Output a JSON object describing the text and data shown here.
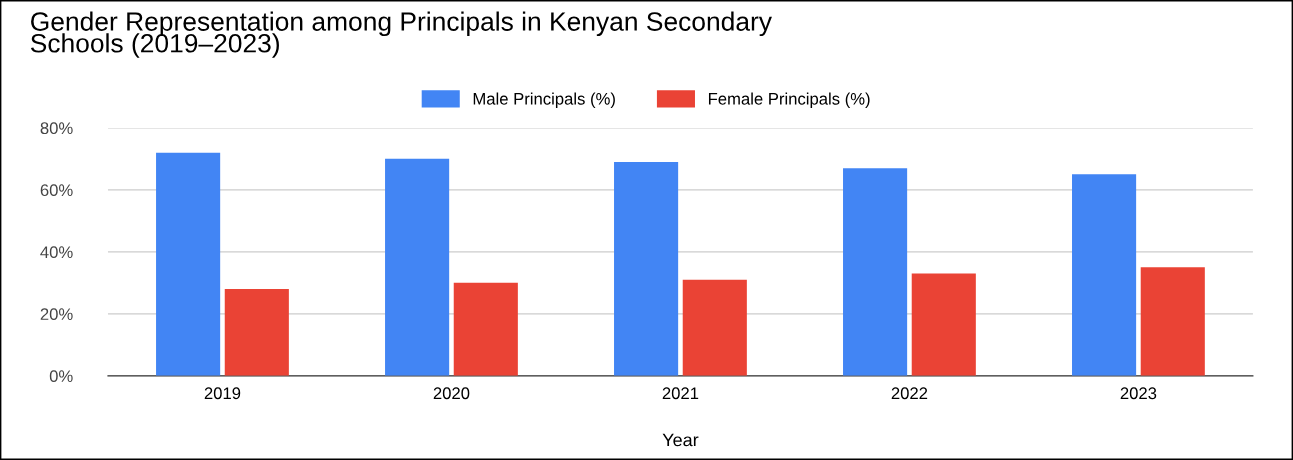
{
  "chart_data": {
    "type": "bar",
    "title": "Gender Representation among Principals in Kenyan Secondary\nSchools (2019–2023)",
    "xlabel": "Year",
    "categories": [
      "2019",
      "2020",
      "2021",
      "2022",
      "2023"
    ],
    "series": [
      {
        "name": "Male Principals (%)",
        "color": "#4285f4",
        "values": [
          72,
          70,
          69,
          67,
          65
        ]
      },
      {
        "name": "Female Principals (%)",
        "color": "#ea4335",
        "values": [
          28,
          30,
          31,
          33,
          35
        ]
      }
    ],
    "ylim": [
      0,
      80
    ],
    "yticks": [
      {
        "value": 0,
        "label": "0%"
      },
      {
        "value": 20,
        "label": "20%"
      },
      {
        "value": 40,
        "label": "40%"
      },
      {
        "value": 60,
        "label": "60%"
      },
      {
        "value": 80,
        "label": "80%"
      }
    ],
    "grid": "y",
    "legend": "top"
  }
}
